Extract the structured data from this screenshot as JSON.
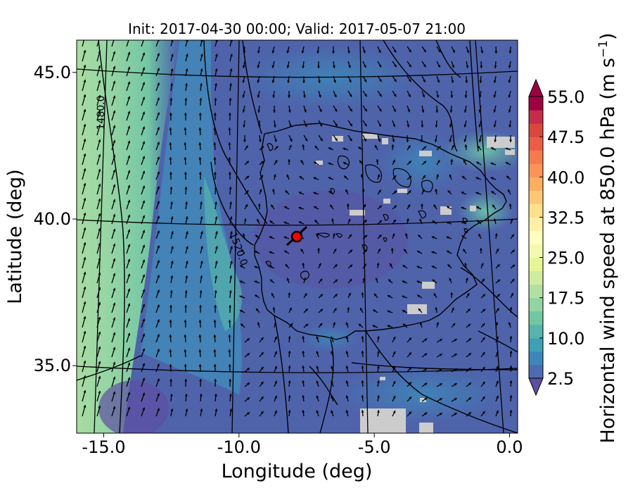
{
  "chart_data": {
    "type": "heatmap",
    "title": "Init: 2017-04-30 00:00; Valid: 2017-05-07 21:00",
    "xlabel": "Longitude (deg)",
    "ylabel": "Latitude (deg)",
    "xlim": [
      -16.0,
      0.3
    ],
    "ylim": [
      32.7,
      46.1
    ],
    "x_ticks": [
      "-15.0",
      "-10.0",
      "-5.0",
      "0.0"
    ],
    "x_tick_values": [
      -15.0,
      -10.0,
      -5.0,
      0.0
    ],
    "y_ticks": [
      "45.0",
      "40.0",
      "35.0"
    ],
    "y_tick_values": [
      45.0,
      40.0,
      35.0
    ],
    "colorbar": {
      "label": "Horizontal wind speed at 850.0 hPa (m s",
      "label_sup": "−1",
      "label_close": ")",
      "min": 2.5,
      "max": 55.0,
      "step": 2.5,
      "ticks": [
        "55.0",
        "47.5",
        "40.0",
        "32.5",
        "25.0",
        "17.5",
        "10.0",
        "2.5"
      ],
      "tick_values": [
        55.0,
        47.5,
        40.0,
        32.5,
        25.0,
        17.5,
        10.0,
        2.5
      ],
      "colors": [
        "#5e4fa2",
        "#4c6bb0",
        "#3d86b8",
        "#3f9fb5",
        "#56b4aa",
        "#73c6a4",
        "#93d4a4",
        "#b2e0a2",
        "#cfeca0",
        "#e6f598",
        "#f3fab0",
        "#ffffbf",
        "#fff0a6",
        "#fee08b",
        "#fdc876",
        "#fdae61",
        "#fa9457",
        "#f57a4e",
        "#ea5e46",
        "#d9473e",
        "#c42d49",
        "#9e0142"
      ]
    },
    "contour_labels": [
      "1480.0",
      "1520.0"
    ],
    "marker": {
      "lon": -7.7,
      "lat": 39.35,
      "color": "#ff0000"
    },
    "grid": "on"
  }
}
